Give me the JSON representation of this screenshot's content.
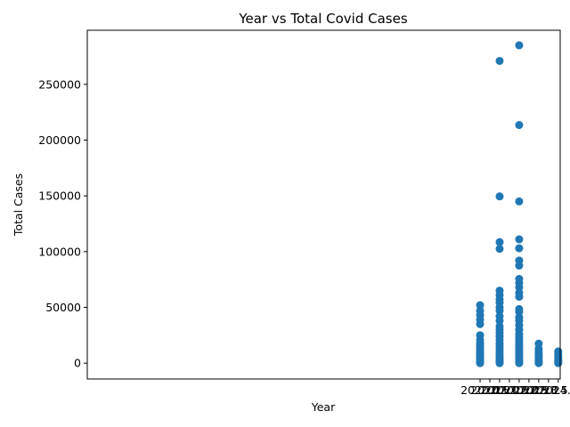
{
  "chart_data": {
    "type": "scatter",
    "title": "Year vs Total Covid Cases",
    "xlabel": "Year",
    "ylabel": "Total Cases",
    "xlim": [
      1999.9,
      2024.1
    ],
    "ylim": [
      -14200,
      298500
    ],
    "x_ticks": [
      2020.0,
      2020.5,
      2021.0,
      2021.5,
      2022.0,
      2022.5,
      2023.0,
      2023.5,
      2024.0
    ],
    "x_tick_labels": [
      "2020.0",
      "2020.5",
      "2021.0",
      "2021.5",
      "2022.0",
      "2022.5",
      "2023.0",
      "2023.5",
      "2024.0"
    ],
    "y_ticks": [
      0,
      50000,
      100000,
      150000,
      200000,
      250000
    ],
    "y_tick_labels": [
      "0",
      "50000",
      "100000",
      "150000",
      "200000",
      "250000"
    ],
    "grid": false,
    "marker_color": "#1f77b4",
    "series": [
      {
        "points": [
          [
            2020,
            52000
          ],
          [
            2020,
            47000
          ],
          [
            2020,
            43000
          ],
          [
            2020,
            39000
          ],
          [
            2020,
            35000
          ],
          [
            2020,
            25000
          ],
          [
            2020,
            21000
          ],
          [
            2020,
            18000
          ],
          [
            2020,
            16000
          ],
          [
            2020,
            14000
          ],
          [
            2020,
            12000
          ],
          [
            2020,
            10000
          ],
          [
            2020,
            8500
          ],
          [
            2020,
            7000
          ],
          [
            2020,
            5500
          ],
          [
            2020,
            4000
          ],
          [
            2020,
            3000
          ],
          [
            2020,
            2000
          ],
          [
            2020,
            1000
          ],
          [
            2020,
            0
          ],
          [
            2021,
            271000
          ],
          [
            2021,
            149500
          ],
          [
            2021,
            108500
          ],
          [
            2021,
            102500
          ],
          [
            2021,
            65000
          ],
          [
            2021,
            61000
          ],
          [
            2021,
            57000
          ],
          [
            2021,
            54000
          ],
          [
            2021,
            50000
          ],
          [
            2021,
            47000
          ],
          [
            2021,
            42000
          ],
          [
            2021,
            38000
          ],
          [
            2021,
            33000
          ],
          [
            2021,
            30000
          ],
          [
            2021,
            27000
          ],
          [
            2021,
            24000
          ],
          [
            2021,
            21000
          ],
          [
            2021,
            18000
          ],
          [
            2021,
            15500
          ],
          [
            2021,
            13000
          ],
          [
            2021,
            11000
          ],
          [
            2021,
            9000
          ],
          [
            2021,
            7000
          ],
          [
            2021,
            5000
          ],
          [
            2021,
            3500
          ],
          [
            2021,
            2000
          ],
          [
            2021,
            1000
          ],
          [
            2021,
            0
          ],
          [
            2022,
            285000
          ],
          [
            2022,
            213500
          ],
          [
            2022,
            145000
          ],
          [
            2022,
            111000
          ],
          [
            2022,
            103000
          ],
          [
            2022,
            92000
          ],
          [
            2022,
            87500
          ],
          [
            2022,
            75500
          ],
          [
            2022,
            72000
          ],
          [
            2022,
            68000
          ],
          [
            2022,
            63000
          ],
          [
            2022,
            59500
          ],
          [
            2022,
            48500
          ],
          [
            2022,
            46000
          ],
          [
            2022,
            41000
          ],
          [
            2022,
            38000
          ],
          [
            2022,
            34000
          ],
          [
            2022,
            30000
          ],
          [
            2022,
            26000
          ],
          [
            2022,
            23000
          ],
          [
            2022,
            20500
          ],
          [
            2022,
            18000
          ],
          [
            2022,
            16000
          ],
          [
            2022,
            14000
          ],
          [
            2022,
            12000
          ],
          [
            2022,
            10000
          ],
          [
            2022,
            8000
          ],
          [
            2022,
            6500
          ],
          [
            2022,
            5000
          ],
          [
            2022,
            3500
          ],
          [
            2022,
            2000
          ],
          [
            2022,
            1000
          ],
          [
            2022,
            0
          ],
          [
            2023,
            17500
          ],
          [
            2023,
            13000
          ],
          [
            2023,
            11000
          ],
          [
            2023,
            9000
          ],
          [
            2023,
            7500
          ],
          [
            2023,
            6000
          ],
          [
            2023,
            4500
          ],
          [
            2023,
            3000
          ],
          [
            2023,
            2000
          ],
          [
            2023,
            1000
          ],
          [
            2023,
            0
          ],
          [
            2024,
            10500
          ],
          [
            2024,
            8000
          ],
          [
            2024,
            6000
          ],
          [
            2024,
            4500
          ],
          [
            2024,
            3000
          ],
          [
            2024,
            2000
          ],
          [
            2024,
            1000
          ],
          [
            2024,
            0
          ]
        ]
      }
    ]
  }
}
